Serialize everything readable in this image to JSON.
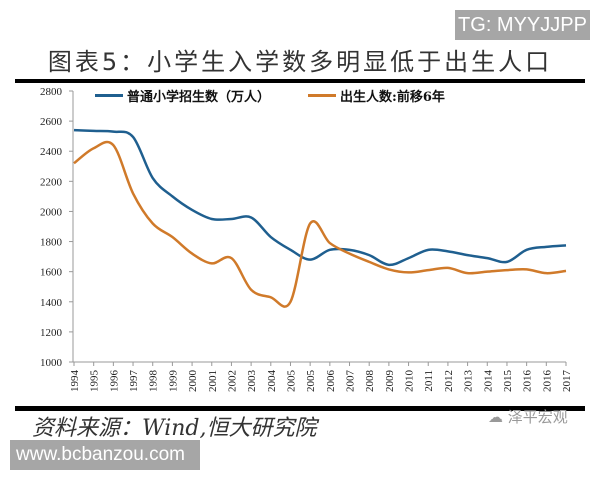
{
  "watermark_top": "TG: MYYJJPP",
  "watermark_bottom": "www.bcbanzou.com",
  "source": "资料来源：Wind,恒大研究院",
  "logo_text": "泽平宏观",
  "chart_data": {
    "type": "line",
    "title": "图表5：小学生入学数多明显低于出生人口",
    "categories": [
      "1994",
      "1995",
      "1996",
      "1997",
      "1998",
      "1999",
      "2000",
      "2001",
      "2002",
      "2003",
      "2004",
      "2005",
      "2005",
      "2006",
      "2007",
      "2008",
      "2009",
      "2010",
      "2011",
      "2012",
      "2013",
      "2014",
      "2015",
      "2016",
      "2016",
      "2017"
    ],
    "ylim": [
      1000,
      2800
    ],
    "yticks": [
      1000,
      1200,
      1400,
      1600,
      1800,
      2000,
      2200,
      2400,
      2600,
      2800
    ],
    "grid": false,
    "legend_position": "top",
    "series": [
      {
        "name": "普通小学招生数（万人）",
        "color": "#1f5f8f",
        "values": [
          2540,
          2535,
          2530,
          2495,
          2222,
          2100,
          2010,
          1950,
          1950,
          1960,
          1830,
          1745,
          1680,
          1745,
          1745,
          1710,
          1645,
          1690,
          1745,
          1735,
          1710,
          1690,
          1665,
          1745,
          1765,
          1775
        ]
      },
      {
        "name": "出生人数:前移6年",
        "color": "#d07a2a",
        "values": [
          2320,
          2420,
          2440,
          2120,
          1920,
          1830,
          1720,
          1655,
          1690,
          1480,
          1430,
          1400,
          1920,
          1790,
          1720,
          1665,
          1615,
          1595,
          1610,
          1625,
          1590,
          1600,
          1610,
          1615,
          1590,
          1605
        ]
      }
    ]
  }
}
